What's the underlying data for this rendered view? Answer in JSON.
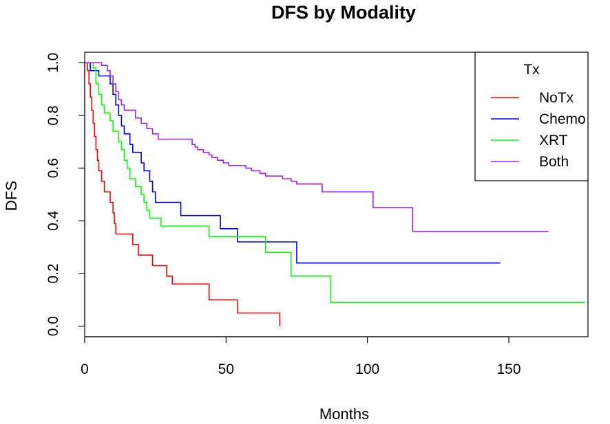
{
  "chart_data": {
    "type": "line",
    "title": "DFS by Modality",
    "xlabel": "Months",
    "ylabel": "DFS",
    "xlim": [
      0,
      178
    ],
    "ylim": [
      -0.04,
      1.04
    ],
    "xticks": [
      0,
      50,
      100,
      150
    ],
    "xtick_labels": [
      "0",
      "50",
      "100",
      "150"
    ],
    "yticks": [
      0.0,
      0.2,
      0.4,
      0.6,
      0.8,
      1.0
    ],
    "ytick_labels": [
      "0.0",
      "0.2",
      "0.4",
      "0.6",
      "0.8",
      "1.0"
    ],
    "grid": false,
    "legend": {
      "title": "Tx",
      "position": "top-right"
    },
    "series": [
      {
        "name": "NoTx",
        "color": "#ff0000",
        "points": [
          [
            0,
            1.0
          ],
          [
            1,
            0.97
          ],
          [
            1.5,
            0.92
          ],
          [
            2,
            0.87
          ],
          [
            2.5,
            0.82
          ],
          [
            3,
            0.77
          ],
          [
            3.5,
            0.72
          ],
          [
            4,
            0.67
          ],
          [
            4.5,
            0.63
          ],
          [
            5,
            0.59
          ],
          [
            6,
            0.55
          ],
          [
            7,
            0.51
          ],
          [
            9,
            0.47
          ],
          [
            10,
            0.43
          ],
          [
            10.5,
            0.39
          ],
          [
            11,
            0.35
          ],
          [
            17,
            0.31
          ],
          [
            19,
            0.27
          ],
          [
            24,
            0.23
          ],
          [
            29,
            0.19
          ],
          [
            31,
            0.16
          ],
          [
            44,
            0.1
          ],
          [
            54,
            0.05
          ],
          [
            69,
            0.02
          ],
          [
            69,
            0.0
          ]
        ]
      },
      {
        "name": "Chemo",
        "color": "#0000ff",
        "points": [
          [
            0,
            1.0
          ],
          [
            2,
            0.97
          ],
          [
            5,
            0.95
          ],
          [
            9,
            0.92
          ],
          [
            10,
            0.88
          ],
          [
            11,
            0.84
          ],
          [
            12,
            0.8
          ],
          [
            13,
            0.76
          ],
          [
            14,
            0.73
          ],
          [
            16,
            0.69
          ],
          [
            17,
            0.66
          ],
          [
            20,
            0.62
          ],
          [
            21,
            0.59
          ],
          [
            23,
            0.55
          ],
          [
            24,
            0.51
          ],
          [
            25,
            0.47
          ],
          [
            34,
            0.42
          ],
          [
            48,
            0.37
          ],
          [
            54,
            0.32
          ],
          [
            75,
            0.24
          ],
          [
            147,
            0.24
          ]
        ]
      },
      {
        "name": "XRT",
        "color": "#00ff00",
        "points": [
          [
            0,
            1.0
          ],
          [
            3,
            0.98
          ],
          [
            4,
            0.92
          ],
          [
            5,
            0.88
          ],
          [
            6,
            0.84
          ],
          [
            7,
            0.81
          ],
          [
            9,
            0.78
          ],
          [
            10,
            0.74
          ],
          [
            12,
            0.7
          ],
          [
            13,
            0.67
          ],
          [
            14,
            0.63
          ],
          [
            15,
            0.6
          ],
          [
            16,
            0.56
          ],
          [
            18,
            0.53
          ],
          [
            20,
            0.5
          ],
          [
            21,
            0.47
          ],
          [
            22,
            0.44
          ],
          [
            23,
            0.41
          ],
          [
            27,
            0.38
          ],
          [
            44,
            0.34
          ],
          [
            64,
            0.28
          ],
          [
            73,
            0.19
          ],
          [
            87,
            0.09
          ],
          [
            177,
            0.09
          ]
        ]
      },
      {
        "name": "Both",
        "color": "#a020f0",
        "points": [
          [
            0,
            1.0
          ],
          [
            6,
            0.99
          ],
          [
            8,
            0.97
          ],
          [
            9,
            0.95
          ],
          [
            10,
            0.92
          ],
          [
            11,
            0.89
          ],
          [
            12,
            0.86
          ],
          [
            13,
            0.84
          ],
          [
            14,
            0.82
          ],
          [
            18,
            0.79
          ],
          [
            20,
            0.77
          ],
          [
            22,
            0.75
          ],
          [
            24,
            0.73
          ],
          [
            26,
            0.71
          ],
          [
            38,
            0.69
          ],
          [
            39,
            0.68
          ],
          [
            40,
            0.67
          ],
          [
            42,
            0.66
          ],
          [
            44,
            0.65
          ],
          [
            45,
            0.64
          ],
          [
            47,
            0.63
          ],
          [
            49,
            0.62
          ],
          [
            51,
            0.61
          ],
          [
            57,
            0.6
          ],
          [
            59,
            0.59
          ],
          [
            62,
            0.58
          ],
          [
            64,
            0.57
          ],
          [
            70,
            0.56
          ],
          [
            73,
            0.55
          ],
          [
            75,
            0.54
          ],
          [
            84,
            0.51
          ],
          [
            102,
            0.45
          ],
          [
            116,
            0.36
          ],
          [
            164,
            0.36
          ]
        ]
      }
    ]
  }
}
